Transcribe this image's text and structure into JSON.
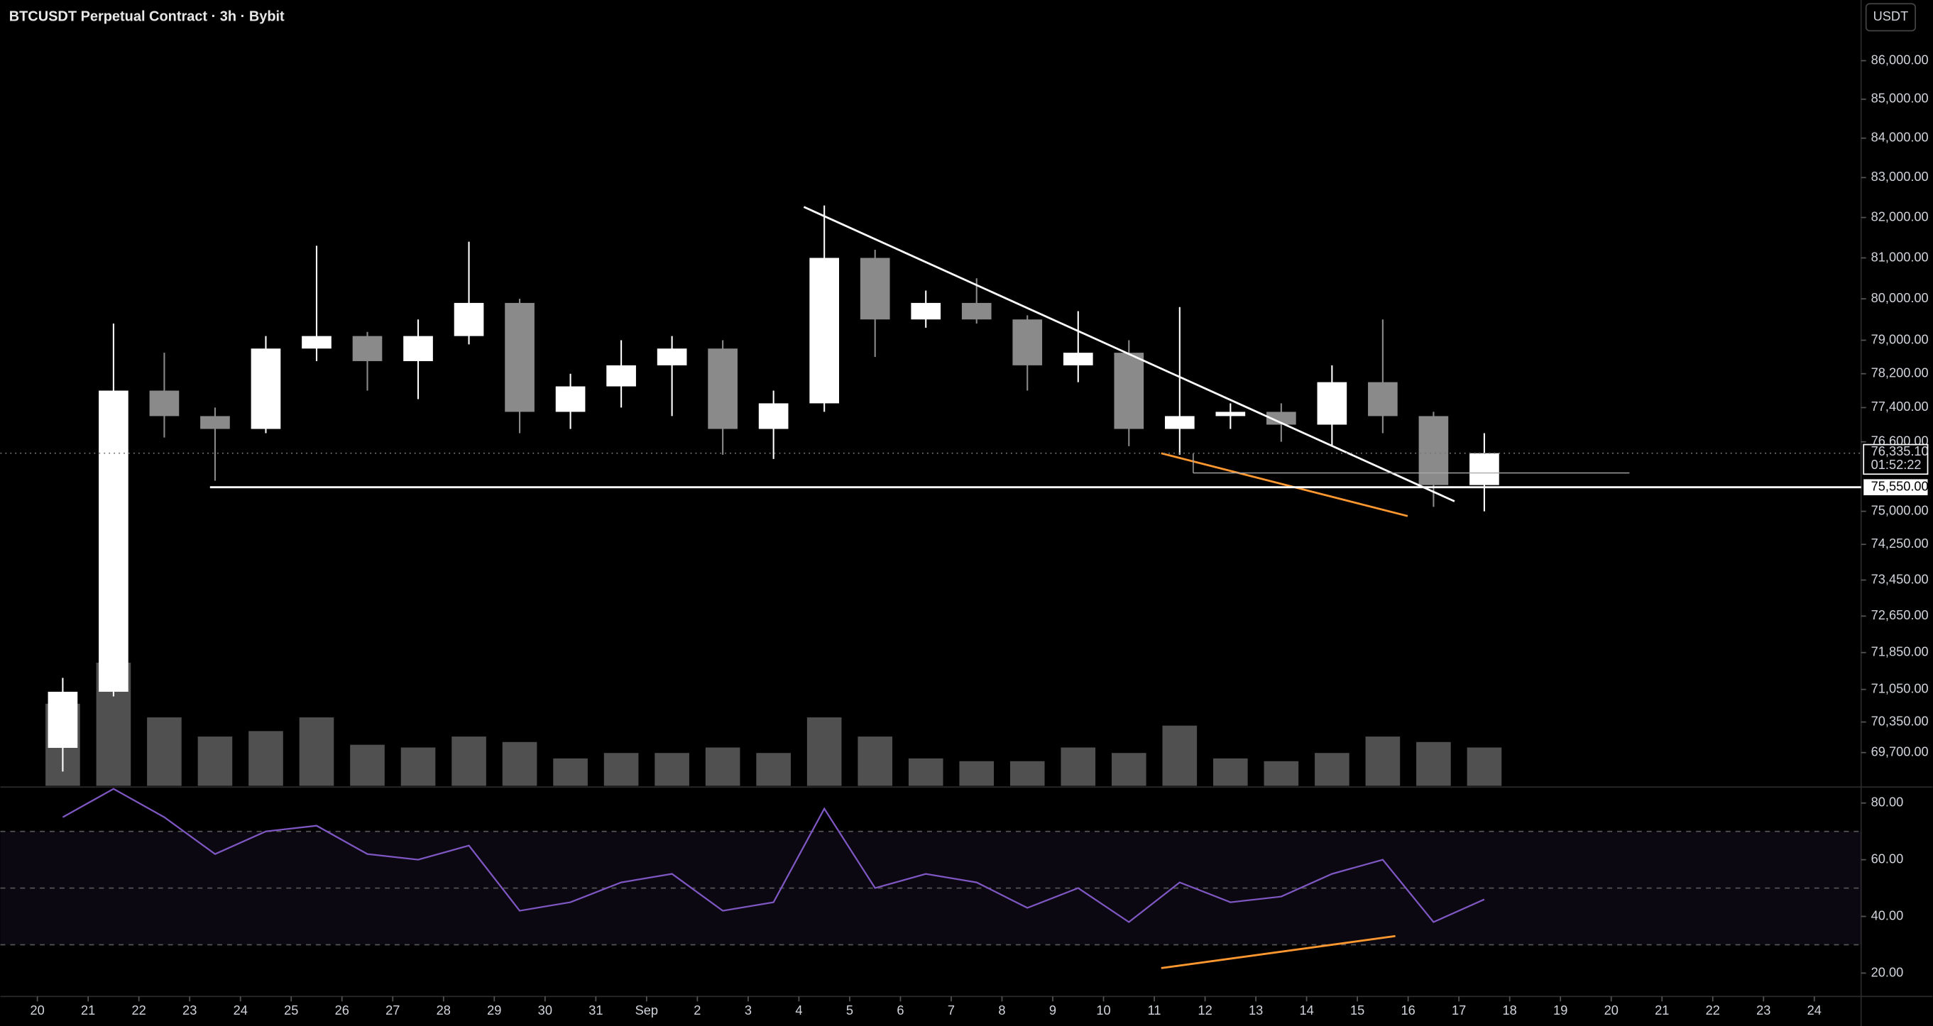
{
  "chart_data": {
    "type": "candlestick",
    "title": "BTCUSDT Perpetual Contract · 3h · Bybit",
    "currency_button": "USDT",
    "categories": [
      "20",
      "21",
      "22",
      "23",
      "24",
      "25",
      "26",
      "27",
      "28",
      "29",
      "30",
      "31",
      "Sep",
      "2",
      "3",
      "4",
      "5",
      "6",
      "7",
      "8",
      "9",
      "10",
      "11",
      "12",
      "13",
      "14",
      "15",
      "16",
      "17",
      "18",
      "19",
      "20",
      "21",
      "22",
      "23",
      "24"
    ],
    "open": [
      69800,
      71000,
      77800,
      77200,
      76900,
      78800,
      79100,
      78500,
      79100,
      79900,
      77300,
      77900,
      78400,
      78800,
      76900,
      77500,
      81000,
      79500,
      79900,
      79500,
      78400,
      78700,
      76900,
      77200,
      77300,
      77000,
      78000,
      77200,
      75600,
      null,
      null,
      null,
      null,
      null,
      null,
      null
    ],
    "high": [
      71300,
      79400,
      78700,
      77400,
      79100,
      81300,
      79200,
      79500,
      81400,
      80000,
      78200,
      79000,
      79100,
      79000,
      77800,
      82300,
      81200,
      80200,
      80500,
      79600,
      79700,
      79000,
      79800,
      77500,
      77500,
      78400,
      79500,
      77300,
      76800,
      null,
      null,
      null,
      null,
      null,
      null,
      null
    ],
    "low": [
      69300,
      70900,
      76700,
      75700,
      76800,
      78500,
      77800,
      77600,
      78900,
      76800,
      76900,
      77400,
      77200,
      76300,
      76200,
      77300,
      78600,
      79300,
      79400,
      77800,
      78000,
      76500,
      76300,
      76900,
      76600,
      76500,
      76800,
      75100,
      75000,
      null,
      null,
      null,
      null,
      null,
      null,
      null
    ],
    "close": [
      71000,
      77800,
      77200,
      76900,
      78800,
      79100,
      78500,
      79100,
      79900,
      77300,
      77900,
      78400,
      78800,
      76900,
      77500,
      81000,
      79500,
      79900,
      79500,
      78400,
      78700,
      76900,
      77200,
      77300,
      77000,
      78000,
      77200,
      75600,
      76335.1,
      null,
      null,
      null,
      null,
      null,
      null,
      null
    ],
    "volume": [
      30,
      45,
      25,
      18,
      20,
      25,
      15,
      14,
      18,
      16,
      10,
      12,
      12,
      14,
      12,
      25,
      18,
      10,
      9,
      9,
      14,
      12,
      22,
      10,
      9,
      12,
      18,
      16,
      14,
      null,
      null,
      null,
      null,
      null,
      null,
      null
    ],
    "rsi": [
      75,
      85,
      75,
      62,
      70,
      72,
      62,
      60,
      65,
      42,
      45,
      52,
      55,
      42,
      45,
      78,
      50,
      55,
      52,
      43,
      50,
      38,
      52,
      45,
      47,
      55,
      60,
      38,
      46,
      null,
      null,
      null,
      null,
      null,
      null,
      null
    ],
    "up_color": "#ffffff",
    "down_color": "#8a8a8a",
    "volume_color": "#6b6b6b",
    "rsi_color": "#7e57c2",
    "log_scale": true,
    "ylim": [
      69000,
      87600
    ],
    "yticks": [
      {
        "value": 86000,
        "label": "86,000.00"
      },
      {
        "value": 85000,
        "label": "85,000.00"
      },
      {
        "value": 84000,
        "label": "84,000.00"
      },
      {
        "value": 83000,
        "label": "83,000.00"
      },
      {
        "value": 82000,
        "label": "82,000.00"
      },
      {
        "value": 81000,
        "label": "81,000.00"
      },
      {
        "value": 80000,
        "label": "80,000.00"
      },
      {
        "value": 79000,
        "label": "79,000.00"
      },
      {
        "value": 78200,
        "label": "78,200.00"
      },
      {
        "value": 77400,
        "label": "77,400.00"
      },
      {
        "value": 76600,
        "label": "76,600.00"
      },
      {
        "value": 75000,
        "label": "75,000.00"
      },
      {
        "value": 74250,
        "label": "74,250.00"
      },
      {
        "value": 73450,
        "label": "73,450.00"
      },
      {
        "value": 72650,
        "label": "72,650.00"
      },
      {
        "value": 71850,
        "label": "71,850.00"
      },
      {
        "value": 71050,
        "label": "71,050.00"
      },
      {
        "value": 70350,
        "label": "70,350.00"
      },
      {
        "value": 69700,
        "label": "69,700.00"
      }
    ],
    "rsi_ylim": [
      12.2,
      85.2
    ],
    "rsi_yticks": [
      {
        "value": 80,
        "label": "80.00"
      },
      {
        "value": 60,
        "label": "60.00"
      },
      {
        "value": 40,
        "label": "40.00"
      },
      {
        "value": 20,
        "label": "20.00"
      }
    ],
    "rsi_bands": [
      70,
      50,
      30
    ],
    "last_price": {
      "value": 76335.1,
      "label": "76,335.10"
    },
    "countdown": "01:52:22",
    "support_line": {
      "value": 75550,
      "label": "75,550.00"
    },
    "support_color": "#ffffff"
  }
}
